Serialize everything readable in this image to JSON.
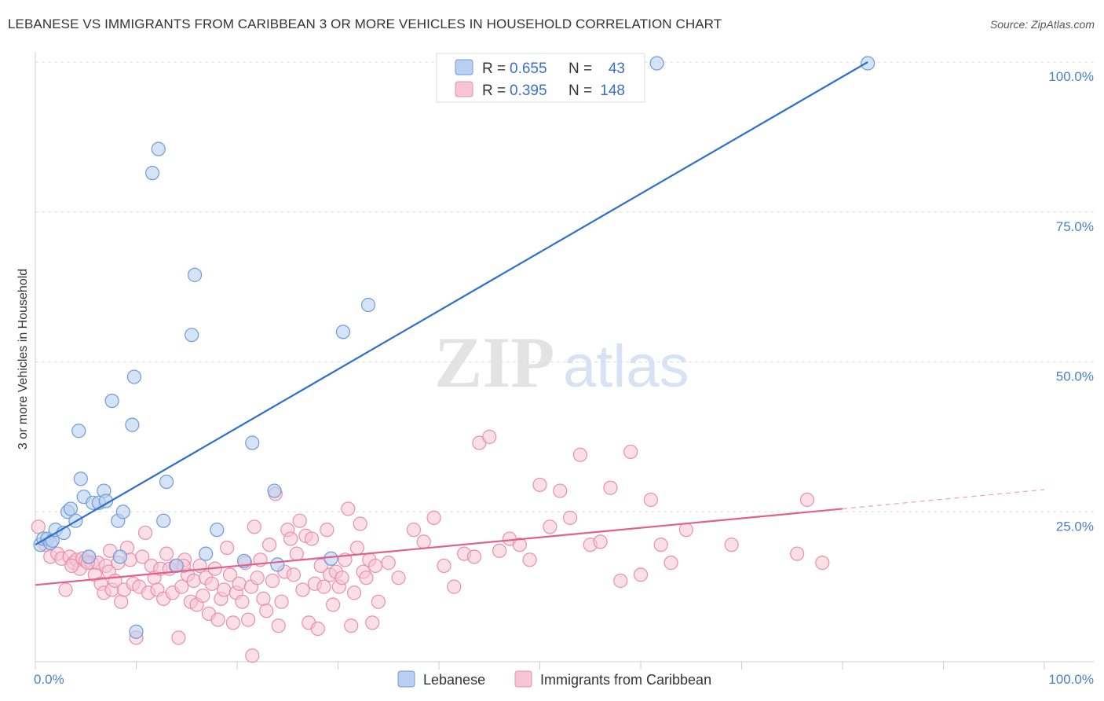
{
  "title": "LEBANESE VS IMMIGRANTS FROM CARIBBEAN 3 OR MORE VEHICLES IN HOUSEHOLD CORRELATION CHART",
  "source": "Source: ZipAtlas.com",
  "watermark": {
    "zip": "ZIP",
    "atlas": "atlas"
  },
  "colors": {
    "lebanese_fill": "#b9d0f2",
    "lebanese_stroke": "#6f9ad8",
    "lebanese_line": "#2c6fcd",
    "caribbean_fill": "#f7c5d4",
    "caribbean_stroke": "#e88fab",
    "caribbean_line": "#e0608e",
    "tick_color": "#4a7fd0",
    "grid": "#dddddd"
  },
  "legend": {
    "rows": [
      {
        "r_label": "R =",
        "r_value": "0.655",
        "n_label": "N =",
        "n_value": "43"
      },
      {
        "r_label": "R =",
        "r_value": "0.395",
        "n_label": "N =",
        "n_value": "148"
      }
    ]
  },
  "bottom_legend": {
    "series1": "Lebanese",
    "series2": "Immigrants from Caribbean"
  },
  "chart_data": {
    "type": "scatter",
    "title": "LEBANESE VS IMMIGRANTS FROM CARIBBEAN 3 OR MORE VEHICLES IN HOUSEHOLD CORRELATION CHART",
    "xlabel": "",
    "ylabel": "3 or more Vehicles in Household",
    "xlim": [
      0,
      100
    ],
    "ylim": [
      0,
      100
    ],
    "x_tick_labels": [
      "0.0%",
      "100.0%"
    ],
    "y_tick_labels": [
      {
        "value": 100,
        "label": "100.0%"
      },
      {
        "value": 75,
        "label": "75.0%"
      },
      {
        "value": 50,
        "label": "50.0%"
      },
      {
        "value": 25,
        "label": "25.0%"
      }
    ],
    "grid": true,
    "legend_position": "top-center",
    "series": [
      {
        "name": "Lebanese",
        "R": 0.655,
        "N": 43,
        "trend": {
          "x": [
            0,
            82.5
          ],
          "y": [
            19.5,
            100
          ]
        },
        "points": [
          [
            0.5,
            19.5
          ],
          [
            0.8,
            20.5
          ],
          [
            1.2,
            20.5
          ],
          [
            1.5,
            19.8
          ],
          [
            1.7,
            20.2
          ],
          [
            2.0,
            22
          ],
          [
            2.8,
            21.5
          ],
          [
            3.2,
            25
          ],
          [
            3.5,
            25.5
          ],
          [
            4.0,
            23.5
          ],
          [
            4.5,
            30.5
          ],
          [
            4.8,
            27.5
          ],
          [
            5.3,
            17.5
          ],
          [
            5.7,
            26.5
          ],
          [
            6.3,
            26.5
          ],
          [
            6.8,
            28.5
          ],
          [
            7.0,
            26.8
          ],
          [
            7.6,
            43.5
          ],
          [
            8.2,
            23.5
          ],
          [
            8.4,
            17.5
          ],
          [
            8.7,
            25
          ],
          [
            9.6,
            39.5
          ],
          [
            10.0,
            5
          ],
          [
            11.6,
            81.5
          ],
          [
            12.2,
            85.5
          ],
          [
            12.7,
            23.5
          ],
          [
            13.0,
            30
          ],
          [
            14.0,
            16
          ],
          [
            15.5,
            54.5
          ],
          [
            15.8,
            64.5
          ],
          [
            16.9,
            18
          ],
          [
            18.0,
            22
          ],
          [
            20.7,
            16.8
          ],
          [
            21.5,
            36.5
          ],
          [
            23.7,
            28.5
          ],
          [
            24.0,
            16.2
          ],
          [
            29.3,
            17.2
          ],
          [
            30.5,
            55
          ],
          [
            33.0,
            59.5
          ],
          [
            61.6,
            99.8
          ],
          [
            82.5,
            99.8
          ],
          [
            4.3,
            38.5
          ],
          [
            9.8,
            47.5
          ]
        ]
      },
      {
        "name": "Immigrants from Caribbean",
        "R": 0.395,
        "N": 148,
        "trend": {
          "x": [
            0,
            80
          ],
          "y": [
            12.8,
            25.5
          ]
        },
        "trend_ext": {
          "x": [
            80,
            100
          ],
          "y": [
            25.5,
            28.7
          ]
        },
        "points": [
          [
            0.3,
            22.5
          ],
          [
            1.0,
            19.5
          ],
          [
            1.5,
            17.5
          ],
          [
            2.2,
            18
          ],
          [
            2.6,
            17.2
          ],
          [
            3.0,
            12
          ],
          [
            3.4,
            17.5
          ],
          [
            3.8,
            16.5
          ],
          [
            4.1,
            17
          ],
          [
            4.4,
            15.5
          ],
          [
            4.7,
            17.2
          ],
          [
            5.0,
            16.8
          ],
          [
            5.3,
            17.5
          ],
          [
            5.6,
            16.5
          ],
          [
            5.9,
            14.5
          ],
          [
            6.2,
            16.5
          ],
          [
            6.5,
            13
          ],
          [
            6.8,
            11.5
          ],
          [
            7.0,
            16
          ],
          [
            7.3,
            15
          ],
          [
            7.6,
            12
          ],
          [
            7.9,
            13.5
          ],
          [
            8.2,
            16.5
          ],
          [
            8.5,
            10
          ],
          [
            8.8,
            12
          ],
          [
            9.1,
            19
          ],
          [
            9.4,
            17
          ],
          [
            9.7,
            13
          ],
          [
            10.0,
            4
          ],
          [
            10.3,
            12.5
          ],
          [
            10.6,
            17.5
          ],
          [
            10.9,
            21.5
          ],
          [
            11.2,
            11.5
          ],
          [
            11.5,
            16
          ],
          [
            11.8,
            14
          ],
          [
            12.1,
            12
          ],
          [
            12.4,
            15.5
          ],
          [
            12.7,
            10.5
          ],
          [
            13.0,
            18
          ],
          [
            13.3,
            15.5
          ],
          [
            13.6,
            11.5
          ],
          [
            13.9,
            16
          ],
          [
            14.2,
            4
          ],
          [
            14.5,
            12.5
          ],
          [
            14.8,
            17
          ],
          [
            15.1,
            14.5
          ],
          [
            15.4,
            10
          ],
          [
            15.7,
            13.5
          ],
          [
            16.0,
            9.5
          ],
          [
            16.3,
            16
          ],
          [
            16.6,
            11
          ],
          [
            16.9,
            14
          ],
          [
            17.2,
            8
          ],
          [
            17.5,
            13
          ],
          [
            17.8,
            15.5
          ],
          [
            18.1,
            7
          ],
          [
            18.4,
            10.5
          ],
          [
            18.7,
            12
          ],
          [
            19.0,
            19
          ],
          [
            19.3,
            14.5
          ],
          [
            19.6,
            6.5
          ],
          [
            19.9,
            11.5
          ],
          [
            20.2,
            13
          ],
          [
            20.5,
            10
          ],
          [
            20.8,
            16.5
          ],
          [
            21.1,
            7
          ],
          [
            21.4,
            12.5
          ],
          [
            21.7,
            22.5
          ],
          [
            22.0,
            14
          ],
          [
            22.3,
            17
          ],
          [
            22.6,
            10.5
          ],
          [
            22.9,
            8.5
          ],
          [
            23.2,
            19.5
          ],
          [
            23.5,
            13.5
          ],
          [
            23.8,
            28
          ],
          [
            24.1,
            6
          ],
          [
            24.4,
            10
          ],
          [
            24.7,
            15
          ],
          [
            25.0,
            22
          ],
          [
            25.3,
            20.5
          ],
          [
            25.6,
            14.5
          ],
          [
            25.9,
            18
          ],
          [
            26.2,
            23.5
          ],
          [
            26.5,
            12
          ],
          [
            26.8,
            21
          ],
          [
            27.1,
            6.5
          ],
          [
            27.4,
            20.5
          ],
          [
            27.7,
            13
          ],
          [
            28.0,
            5.5
          ],
          [
            28.3,
            16
          ],
          [
            28.6,
            12.5
          ],
          [
            28.9,
            22
          ],
          [
            29.2,
            14.5
          ],
          [
            29.5,
            9.5
          ],
          [
            29.8,
            15
          ],
          [
            30.1,
            12.5
          ],
          [
            30.4,
            14
          ],
          [
            30.7,
            17
          ],
          [
            31.0,
            25.5
          ],
          [
            31.3,
            6
          ],
          [
            31.6,
            11.5
          ],
          [
            31.9,
            19
          ],
          [
            32.2,
            23
          ],
          [
            32.5,
            15
          ],
          [
            32.8,
            14
          ],
          [
            33.1,
            17
          ],
          [
            33.4,
            6.5
          ],
          [
            33.7,
            16
          ],
          [
            34.0,
            10
          ],
          [
            35.0,
            16.5
          ],
          [
            36.0,
            14
          ],
          [
            37.5,
            22
          ],
          [
            38.5,
            20
          ],
          [
            39.5,
            24
          ],
          [
            40.5,
            16
          ],
          [
            41.5,
            12.5
          ],
          [
            42.5,
            18
          ],
          [
            43.5,
            17.5
          ],
          [
            44.0,
            36.5
          ],
          [
            45.0,
            37.5
          ],
          [
            46.0,
            18.5
          ],
          [
            47.0,
            20.5
          ],
          [
            48.0,
            19.5
          ],
          [
            49.0,
            17
          ],
          [
            50.0,
            29.5
          ],
          [
            51.0,
            22.5
          ],
          [
            52.0,
            28.5
          ],
          [
            53.0,
            24
          ],
          [
            54.0,
            34.5
          ],
          [
            55.0,
            19.5
          ],
          [
            56.0,
            20
          ],
          [
            57.0,
            29
          ],
          [
            58.0,
            13.5
          ],
          [
            59.0,
            35
          ],
          [
            60.0,
            14.5
          ],
          [
            61.0,
            27
          ],
          [
            62.0,
            19.5
          ],
          [
            63.0,
            16.5
          ],
          [
            64.5,
            22
          ],
          [
            69.0,
            19.5
          ],
          [
            75.5,
            18
          ],
          [
            76.5,
            27
          ],
          [
            78.0,
            16.5
          ],
          [
            21.5,
            1
          ],
          [
            3.6,
            16
          ],
          [
            5.2,
            16.5
          ],
          [
            14.7,
            16
          ],
          [
            7.4,
            18.5
          ]
        ]
      }
    ]
  }
}
